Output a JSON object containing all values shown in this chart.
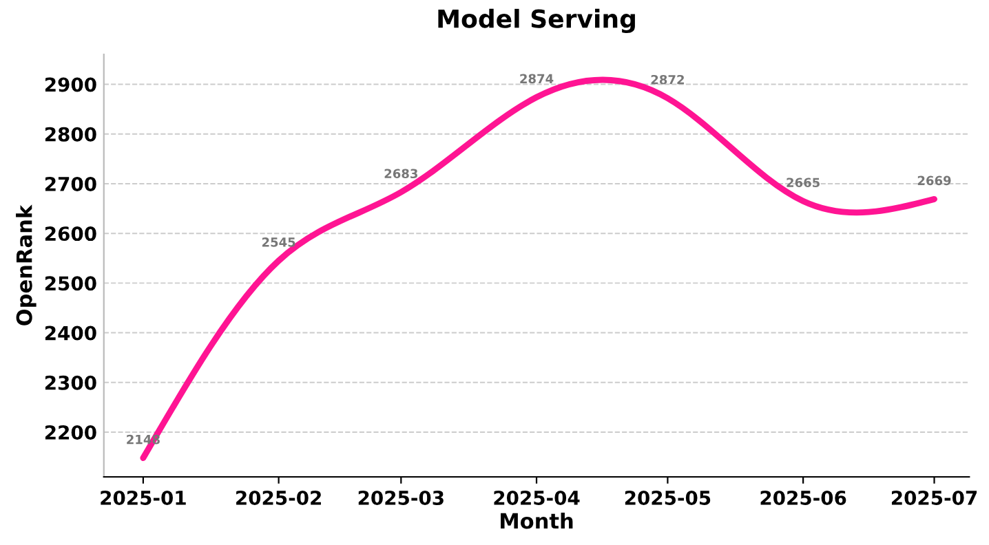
{
  "chart_data": {
    "type": "line",
    "title": "Model Serving",
    "xlabel": "Month",
    "ylabel": "OpenRank",
    "x": [
      "2025-01-01",
      "2025-02-01",
      "2025-03-01",
      "2025-04-01",
      "2025-05-01",
      "2025-06-01",
      "2025-07-01"
    ],
    "series": [
      {
        "color": "#ff1493",
        "values": [
          2148,
          2545,
          2683,
          2874,
          2872,
          2665,
          2669
        ]
      }
    ],
    "xlim": [
      "2024-12-23",
      "2025-07-09"
    ],
    "xticks": [
      {
        "value": "2025-01-01",
        "label": "2025-01"
      },
      {
        "value": "2025-02-01",
        "label": "2025-02"
      },
      {
        "value": "2025-03-01",
        "label": "2025-03"
      },
      {
        "value": "2025-04-01",
        "label": "2025-04"
      },
      {
        "value": "2025-05-01",
        "label": "2025-05"
      },
      {
        "value": "2025-06-01",
        "label": "2025-06"
      },
      {
        "value": "2025-07-01",
        "label": "2025-07"
      }
    ],
    "ylim": [
      2110,
      2960
    ],
    "yticks": [
      2200,
      2300,
      2400,
      2500,
      2600,
      2700,
      2800,
      2900
    ],
    "grid": "y",
    "data_labels": true,
    "legend": false,
    "marker": "none",
    "line_style": "solid"
  }
}
